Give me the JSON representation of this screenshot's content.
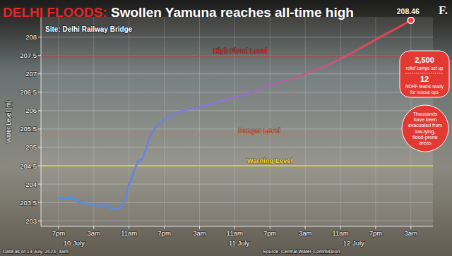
{
  "chart_data": {
    "type": "line",
    "title": "DELHI FLOODS: Swollen Yamuna reaches all-time high",
    "subtitle": "Site: Delhi Railway Bridge",
    "logo": "F.",
    "y_label": "Water Level (m)",
    "x": [
      0,
      1,
      2,
      3,
      4,
      4.5,
      6,
      7.5,
      9,
      10.5,
      11,
      12,
      13,
      14,
      15,
      16,
      17,
      18,
      19,
      20,
      20.5,
      22,
      24.5,
      27,
      29,
      31.5,
      35,
      38,
      41,
      44.5,
      47.5,
      51,
      54,
      57,
      60.5,
      63.5,
      67,
      70,
      73,
      76.5,
      80
    ],
    "series": [
      {
        "color": "#e8413c",
        "values": [
          203.62,
          203.63,
          203.6,
          203.65,
          203.55,
          203.5,
          203.48,
          203.45,
          203.42,
          203.4,
          203.45,
          203.32,
          203.35,
          203.36,
          203.55,
          204.0,
          204.3,
          204.62,
          204.68,
          205.0,
          205.25,
          205.55,
          205.8,
          205.95,
          206.03,
          206.07,
          206.2,
          206.3,
          206.4,
          206.52,
          206.68,
          206.8,
          206.9,
          207.05,
          207.2,
          207.38,
          207.6,
          207.8,
          208.0,
          208.22,
          208.46
        ]
      }
    ],
    "end_label": "208.46",
    "xlim": [
      -4,
      85
    ],
    "xticks": [
      {
        "value": 0,
        "label": "7pm"
      },
      {
        "value": 8,
        "label": "3am"
      },
      {
        "value": 16,
        "label": "11am"
      },
      {
        "value": 24,
        "label": "7pm"
      },
      {
        "value": 32,
        "label": "3am"
      },
      {
        "value": 40,
        "label": "11am"
      },
      {
        "value": 48,
        "label": "7pm"
      },
      {
        "value": 56,
        "label": "3am"
      },
      {
        "value": 64,
        "label": "11am"
      },
      {
        "value": 72,
        "label": "7pm"
      },
      {
        "value": 80,
        "label": "3am"
      }
    ],
    "x_groups": [
      {
        "value": 3.5,
        "label": "10 July"
      },
      {
        "value": 41,
        "label": "11 July"
      },
      {
        "value": 67,
        "label": "12 July"
      }
    ],
    "ylim": [
      202.85,
      208.55
    ],
    "yticks": [
      203,
      203.5,
      204,
      204.5,
      205,
      205.5,
      206,
      206.5,
      207,
      207.5,
      208
    ],
    "grid": true,
    "reference_lines": [
      {
        "label": "High Flood Level",
        "value": 207.49,
        "color": "#d9302c"
      },
      {
        "label": "Danger Level",
        "value": 205.33,
        "color": "#e4713c"
      },
      {
        "label": "Warning Level",
        "value": 204.5,
        "color": "#f4d21f"
      }
    ],
    "annotations": [
      {
        "texts": [
          "2,500",
          "relief camps set up",
          "12",
          "NDRF teams ready",
          "for rescue ops"
        ]
      },
      {
        "texts": [
          "Thousands",
          "have been",
          "evacuated from",
          "low-lying,",
          "flood-prone",
          "areas"
        ]
      }
    ],
    "footnote": "Data as of 13 July, 2023, 3am",
    "source": "Source: Central Water Commission"
  }
}
